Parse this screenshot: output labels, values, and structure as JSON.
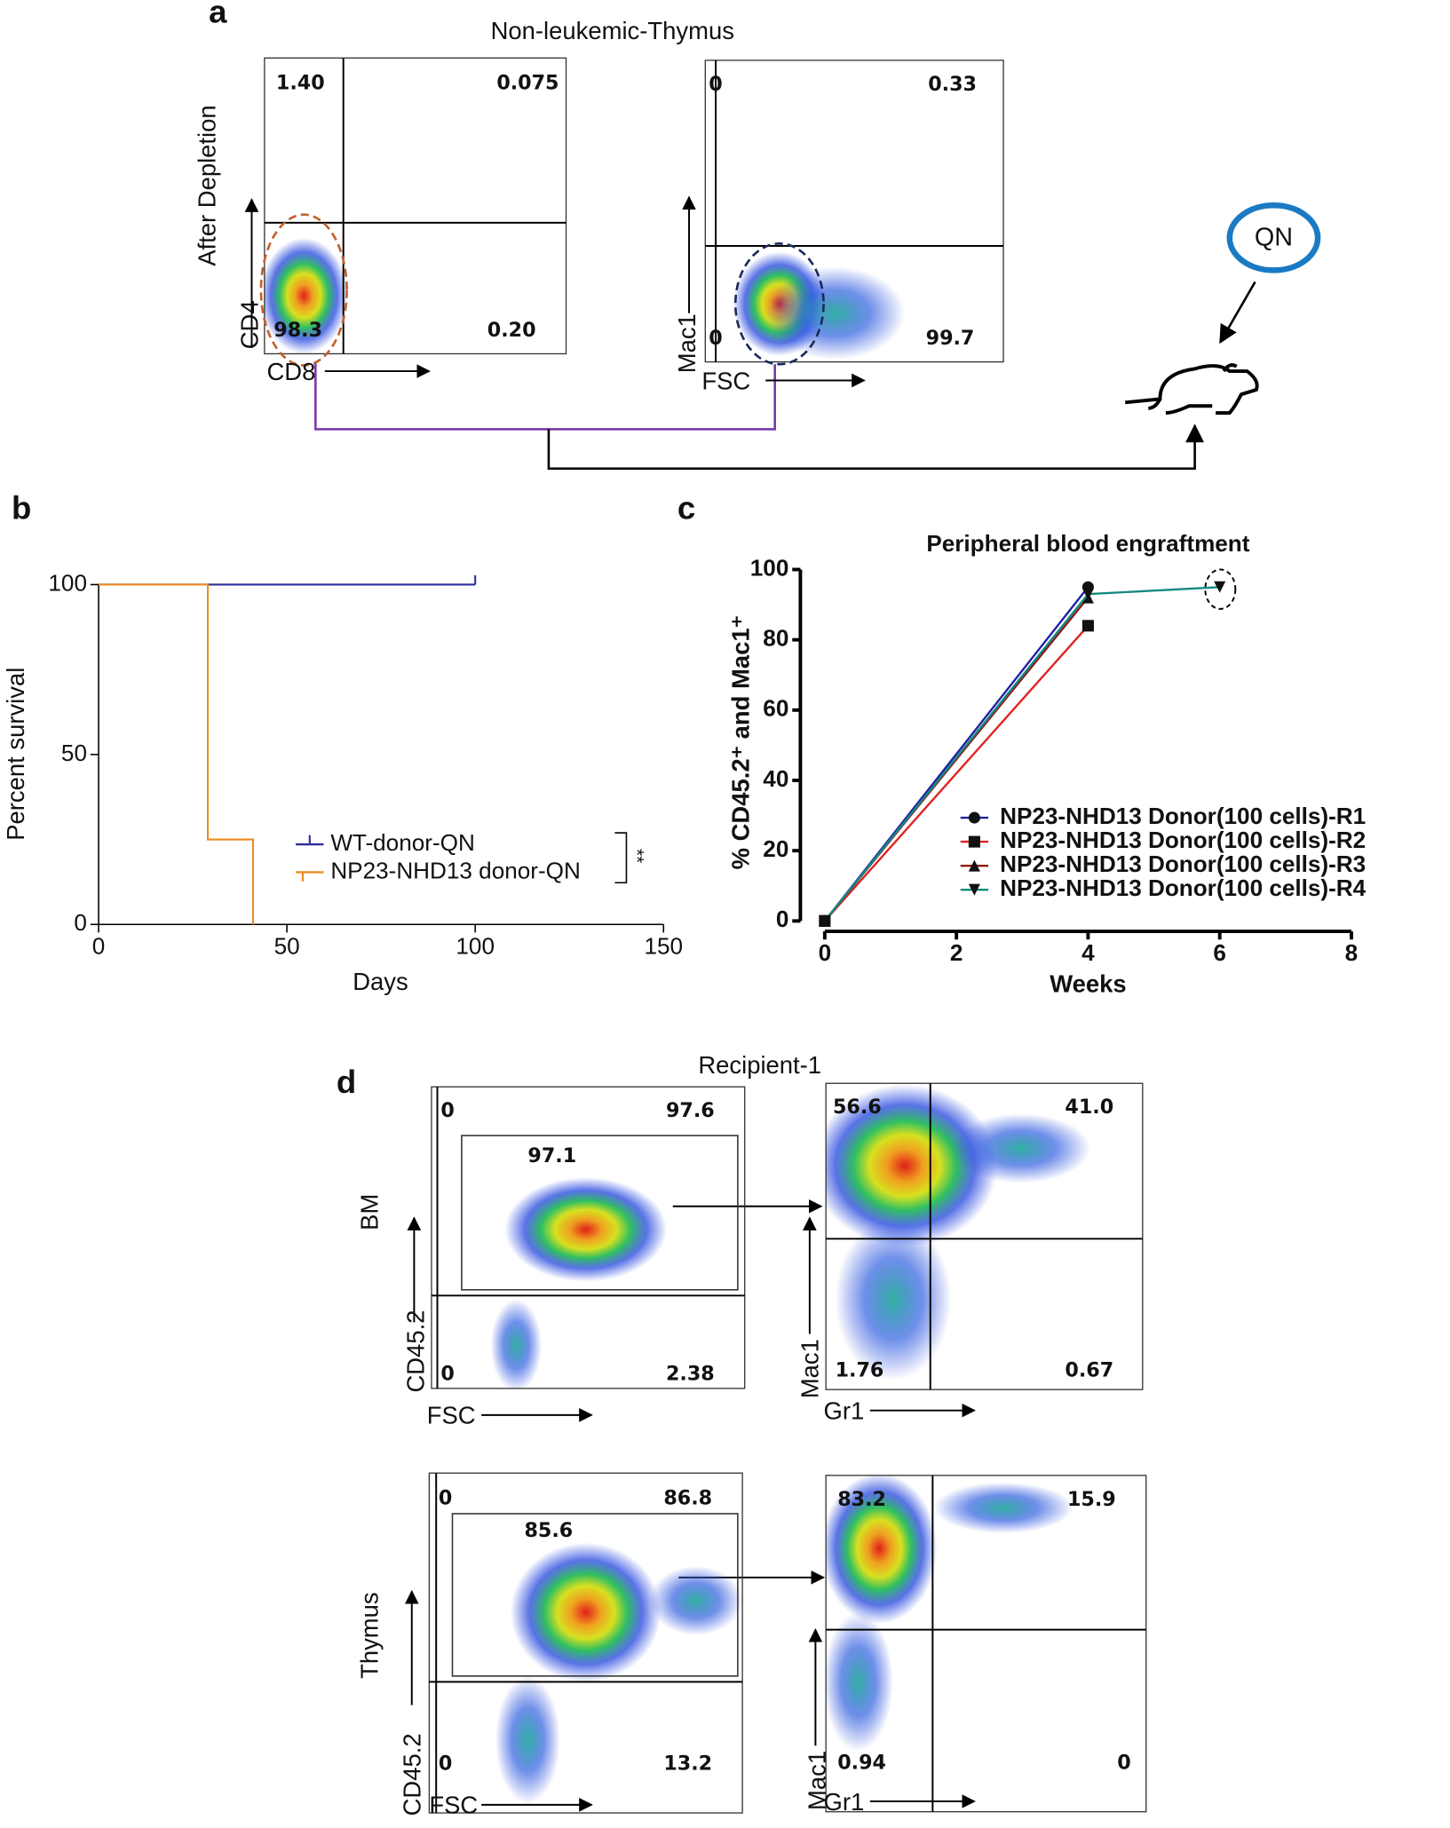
{
  "panel_a": {
    "letter": "a",
    "title": "Non-leukemic-Thymus",
    "row_label": "After Depletion",
    "mouse_label": "QN",
    "plots": [
      {
        "quadrants": [
          "1.40",
          "0.075",
          "98.3",
          "0.20"
        ],
        "y_axis": "CD4",
        "x_axis": "CD8"
      },
      {
        "quadrants": [
          "0",
          "0.33",
          "0",
          "99.7"
        ],
        "y_axis": "Mac1",
        "x_axis": "FSC"
      }
    ]
  },
  "panel_b": {
    "letter": "b"
  },
  "panel_c": {
    "letter": "c"
  },
  "panel_d": {
    "letter": "d",
    "title": "Recipient-1",
    "row_labels": [
      "BM",
      "Thymus"
    ],
    "plots": [
      {
        "quadrants": [
          "0",
          "97.6",
          "0",
          "2.38"
        ],
        "gate": "97.1",
        "y_axis": "CD45.2",
        "x_axis": "FSC"
      },
      {
        "quadrants": [
          "56.6",
          "41.0",
          "1.76",
          "0.67"
        ],
        "y_axis": "Mac1",
        "x_axis": "Gr1"
      },
      {
        "quadrants": [
          "0",
          "86.8",
          "0",
          "13.2"
        ],
        "gate": "85.6",
        "y_axis": "CD45.2",
        "x_axis": "FSC"
      },
      {
        "quadrants": [
          "83.2",
          "15.9",
          "0.94",
          "0"
        ],
        "y_axis": "Mac1",
        "x_axis": "Gr1"
      }
    ]
  },
  "chart_data": [
    {
      "type": "line",
      "xlabel": "Days",
      "ylabel": "Percent survival",
      "significance": "**",
      "xlim": [
        0,
        150
      ],
      "xticks": [
        0,
        50,
        100,
        150
      ],
      "ylim": [
        0,
        100
      ],
      "yticks": [
        0,
        50,
        100
      ],
      "series": [
        {
          "name": "WT-donor-QN",
          "color": "#2b2b9e",
          "x": [
            0,
            100
          ],
          "values": [
            100,
            100
          ]
        },
        {
          "name": "NP23-NHD13 donor-QN",
          "color": "#ec8b1e",
          "x": [
            0,
            29,
            29,
            41,
            41
          ],
          "values": [
            100,
            100,
            25,
            25,
            0
          ]
        }
      ]
    },
    {
      "type": "line",
      "title": "Peripheral blood engraftment",
      "xlabel": "Weeks",
      "ylabel": "% CD45.2⁺ and  Mac1⁺",
      "xlim": [
        0,
        8
      ],
      "xticks": [
        0,
        2,
        4,
        6,
        8
      ],
      "ylim": [
        0,
        100
      ],
      "yticks": [
        0,
        20,
        40,
        60,
        80,
        100
      ],
      "series": [
        {
          "name": "NP23-NHD13 Donor(100 cells)-R1",
          "color": "#1f1fa8",
          "marker": "circle",
          "x": [
            0,
            4
          ],
          "values": [
            0,
            95
          ]
        },
        {
          "name": "NP23-NHD13 Donor(100 cells)-R2",
          "color": "#e02020",
          "marker": "square",
          "x": [
            0,
            4
          ],
          "values": [
            0,
            84
          ]
        },
        {
          "name": "NP23-NHD13 Donor(100 cells)-R3",
          "color": "#8b1a1a",
          "marker": "triangle",
          "x": [
            0,
            4
          ],
          "values": [
            0,
            92
          ]
        },
        {
          "name": "NP23-NHD13 Donor(100 cells)-R4",
          "color": "#138a80",
          "marker": "triangle-down",
          "x": [
            0,
            4,
            6
          ],
          "values": [
            0,
            93,
            95
          ]
        }
      ]
    }
  ]
}
